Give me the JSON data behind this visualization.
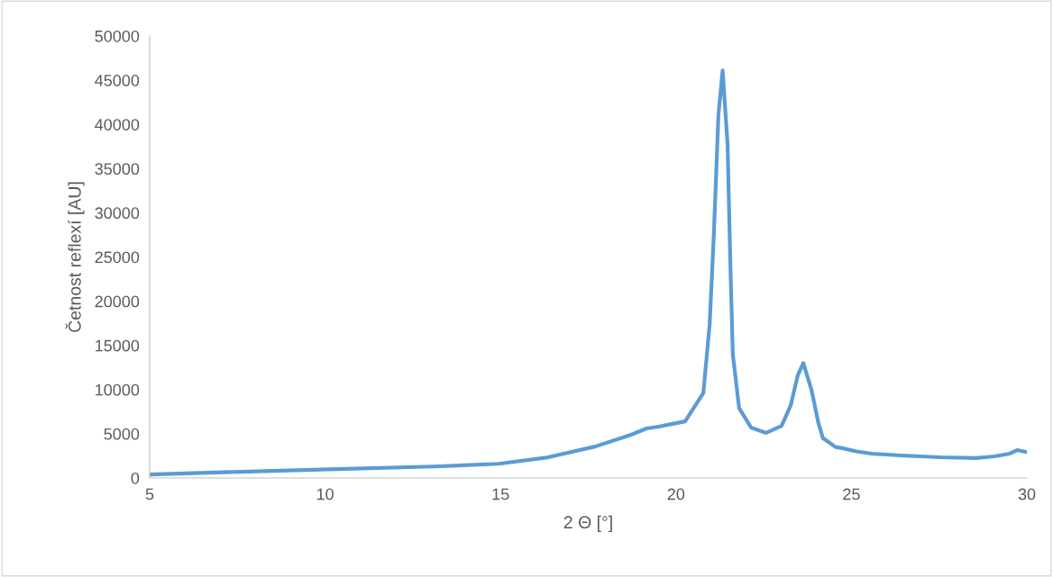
{
  "chart_data": {
    "type": "line",
    "xlabel": "2 Θ [°]",
    "ylabel": "Četnost reflexí [AU]",
    "xlim": [
      5,
      30
    ],
    "xticks": [
      5,
      10,
      15,
      20,
      25,
      30
    ],
    "ylim": [
      0,
      50000
    ],
    "yticks": [
      0,
      5000,
      10000,
      15000,
      20000,
      25000,
      30000,
      35000,
      40000,
      45000,
      50000
    ],
    "grid": false,
    "line_style": "solid",
    "marker": "none",
    "series": [
      {
        "color": "#5b9bd5",
        "x": [
          5.0,
          7.6,
          10.34,
          13.1,
          14.94,
          16.3,
          17.69,
          18.72,
          19.16,
          19.5,
          20.0,
          20.26,
          20.78,
          20.96,
          21.08,
          21.21,
          21.33,
          21.47,
          21.55,
          21.62,
          21.8,
          22.14,
          22.57,
          23.01,
          23.27,
          23.47,
          23.63,
          23.86,
          24.06,
          24.19,
          24.3,
          24.55,
          24.71,
          25.14,
          25.58,
          26.43,
          27.53,
          28.56,
          29.07,
          29.51,
          29.72,
          29.97
        ],
        "values": [
          400,
          700,
          1000,
          1300,
          1600,
          2300,
          3550,
          4890,
          5600,
          5800,
          6200,
          6400,
          9600,
          17400,
          27600,
          41100,
          46100,
          37800,
          24200,
          14000,
          7900,
          5700,
          5100,
          5900,
          8200,
          11600,
          13000,
          10000,
          6200,
          4500,
          4200,
          3500,
          3400,
          3000,
          2750,
          2550,
          2340,
          2250,
          2440,
          2750,
          3150,
          2950
        ]
      }
    ]
  }
}
